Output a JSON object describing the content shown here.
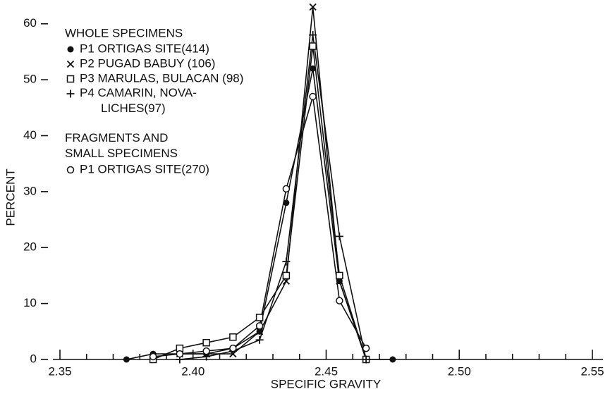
{
  "chart_data": {
    "type": "line",
    "x_label": "SPECIFIC GRAVITY",
    "y_label": "PERCENT",
    "legend_headings": [
      "WHOLE SPECIMENS",
      "FRAGMENTS AND\nSMALL SPECIMENS"
    ],
    "x": [
      2.375,
      2.385,
      2.395,
      2.405,
      2.415,
      2.425,
      2.435,
      2.445,
      2.455,
      2.465,
      2.475
    ],
    "series": [
      {
        "name": "P1 ORTIGAS SITE(414)",
        "marker": "dot",
        "color": "#111111",
        "values": [
          0,
          1,
          1,
          1,
          2,
          5,
          28,
          52,
          14,
          0,
          0
        ]
      },
      {
        "name": "P2 PUGAD BABUY (106)",
        "marker": "x",
        "color": "#111111",
        "values": [
          null,
          null,
          1,
          1,
          1,
          5,
          14,
          63,
          14,
          0,
          null
        ]
      },
      {
        "name": "P3 MARULAS, BULACAN (98)",
        "marker": "square",
        "color": "#111111",
        "values": [
          null,
          0,
          2,
          3,
          4,
          7.5,
          15,
          56,
          15,
          0,
          null
        ]
      },
      {
        "name": "P4 CAMARIN, NOVA-\nLICHES(97)",
        "marker": "plus",
        "color": "#111111",
        "values": [
          null,
          null,
          0,
          0.5,
          1.5,
          3.5,
          17.5,
          58,
          22,
          0,
          null
        ]
      },
      {
        "name": "P1 ORTIGAS SITE(270)",
        "marker": "circle",
        "color": "#111111",
        "values": [
          null,
          0.5,
          1,
          1.5,
          2,
          6,
          30.5,
          47,
          10.5,
          2,
          null
        ]
      }
    ],
    "xlim": [
      2.35,
      2.55
    ],
    "ylim": [
      0,
      64
    ],
    "xticks": [
      2.35,
      {
        "value": 2.4,
        "label": "2.40"
      },
      2.45,
      {
        "value": 2.5,
        "label": "2.50"
      },
      2.55
    ],
    "xminorticks": [
      2.36,
      2.37,
      2.38,
      2.39,
      2.41,
      2.42,
      2.43,
      2.44,
      2.46,
      2.47,
      2.48,
      2.49,
      2.51,
      2.52,
      2.53,
      2.54
    ],
    "yticks": [
      0,
      10,
      20,
      30,
      40,
      50,
      60
    ],
    "grid": false
  }
}
